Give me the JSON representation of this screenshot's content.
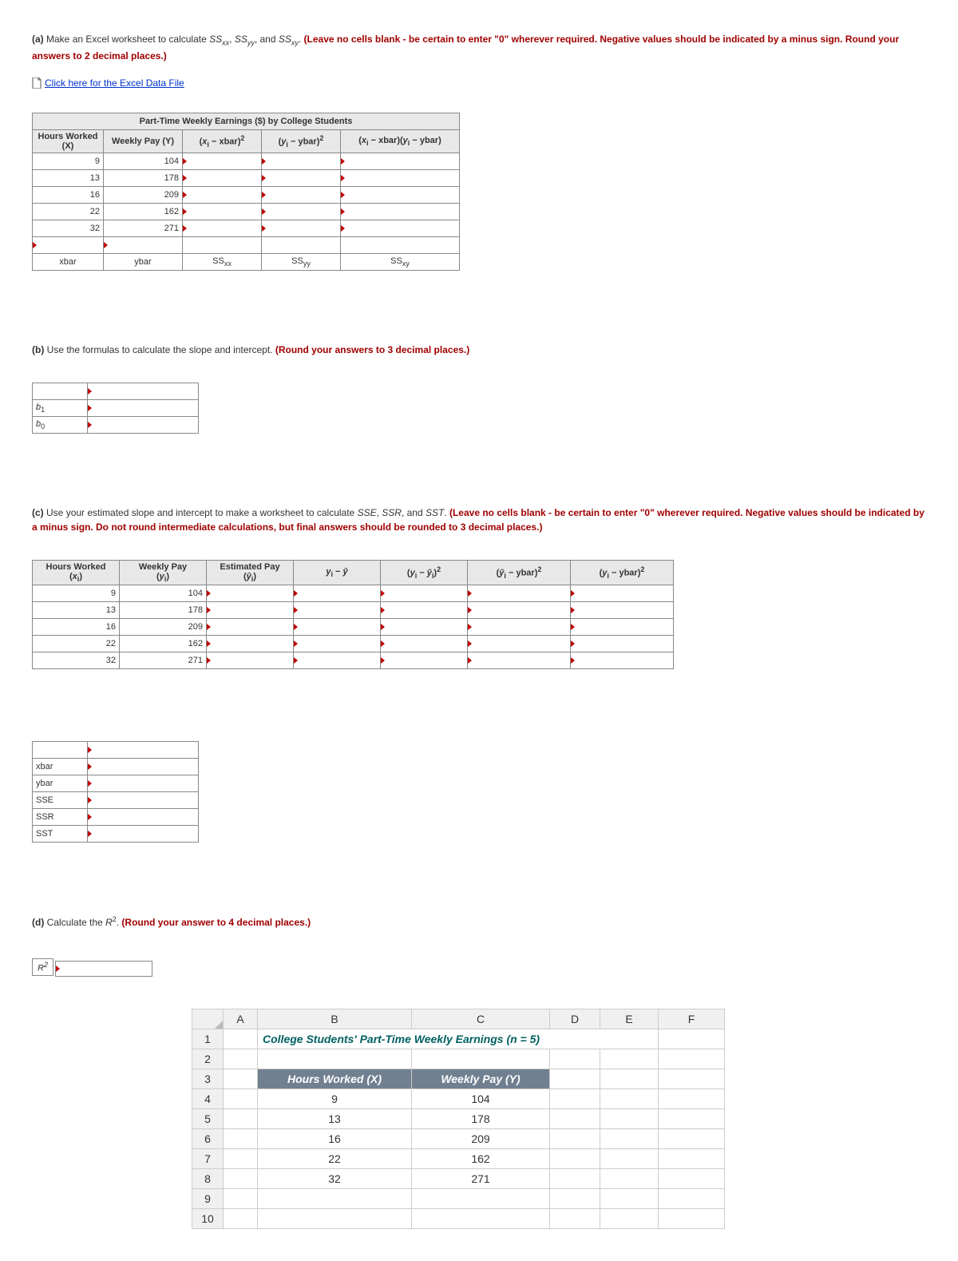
{
  "partA": {
    "label": "(a)",
    "text_before": "Make an Excel worksheet to calculate ",
    "ss_terms": [
      "SS",
      "xx",
      ", ",
      "SS",
      "yy",
      ", and ",
      "SS",
      "xy",
      ". "
    ],
    "red_text": "(Leave no cells blank - be certain to enter \"0\" wherever required. Negative values should be indicated by a minus sign. Round your answers to 2 decimal places.)",
    "link_text": "Click here for the Excel Data File",
    "table_title": "Part-Time Weekly Earnings ($) by College Students",
    "headers": {
      "h1": "Hours Worked (X)",
      "h2": "Weekly Pay (Y)",
      "h3_pre": "(x",
      "h3_sub": "i",
      "h3_post": " − xbar)",
      "h3_sup": "2",
      "h4_pre": "(y",
      "h4_sub": "i",
      "h4_post": " − ybar)",
      "h4_sup": "2",
      "h5_pre": "(x",
      "h5_sub1": "i",
      "h5_mid": " − xbar)(y",
      "h5_sub2": "i",
      "h5_post": " − ybar)"
    },
    "rows": [
      {
        "x": "9",
        "y": "104"
      },
      {
        "x": "13",
        "y": "178"
      },
      {
        "x": "16",
        "y": "209"
      },
      {
        "x": "22",
        "y": "162"
      },
      {
        "x": "32",
        "y": "271"
      }
    ],
    "footer": {
      "xbar": "xbar",
      "ybar": "ybar",
      "ssxx": "SS",
      "ssxx_sub": "xx",
      "ssyy": "SS",
      "ssyy_sub": "yy",
      "ssxy": "SS",
      "ssxy_sub": "xy"
    },
    "col_widths": {
      "c1": 80,
      "c2": 90,
      "c3": 90,
      "c4": 90,
      "c5": 130
    }
  },
  "partB": {
    "label": "(b)",
    "text": "Use the formulas to calculate the slope and intercept. ",
    "red": "(Round your answers to 3 decimal places.)",
    "rows": [
      {
        "label_pre": "b",
        "label_sub": "1"
      },
      {
        "label_pre": "b",
        "label_sub": "0"
      }
    ],
    "col_widths": {
      "c1": 60,
      "c2": 130
    }
  },
  "partC": {
    "label": "(c)",
    "text": "Use your estimated slope and intercept to make a worksheet to calculate ",
    "terms": "SSE, SSR, ",
    "and": "and ",
    "last": "SST. ",
    "red": "(Leave no cells blank - be certain to enter \"0\" wherever required. Negative values should be indicated by a minus sign. Do not round intermediate calculations, but final answers should be rounded to 3 decimal places.)",
    "headers": {
      "h1": "Hours Worked",
      "h1b": "(x",
      "h1b_sub": "i",
      "h1b_post": ")",
      "h2": "Weekly Pay",
      "h2b": "(y",
      "h2b_sub": "i",
      "h2b_post": ")",
      "h3": "Estimated Pay",
      "h3b": "(ŷ",
      "h3b_sub": "i",
      "h3b_post": ")",
      "h4": "y",
      "h4_sub": "i",
      "h4_mid": " − ŷ",
      "h5": "(y",
      "h5_sub": "i",
      "h5_mid": " − ŷ",
      "h5_sub2": "i",
      "h5_post": ")",
      "h5_sup": "2",
      "h6": "(ŷ",
      "h6_sub": "i",
      "h6_mid": " − ybar)",
      "h6_sup": "2",
      "h7": "(y",
      "h7_sub": "i",
      "h7_mid": " − ybar)",
      "h7_sup": "2"
    },
    "rows": [
      {
        "x": "9",
        "y": "104"
      },
      {
        "x": "13",
        "y": "178"
      },
      {
        "x": "16",
        "y": "209"
      },
      {
        "x": "22",
        "y": "162"
      },
      {
        "x": "32",
        "y": "271"
      }
    ],
    "col_widths": {
      "c1": 100,
      "c2": 100,
      "c3": 100,
      "c4": 100,
      "c5": 100,
      "c6": 120,
      "c7": 120
    },
    "summary": {
      "rows": [
        "xbar",
        "ybar",
        "SSE",
        "SSR",
        "SST"
      ],
      "col_widths": {
        "c1": 60,
        "c2": 130
      }
    }
  },
  "partD": {
    "label": "(d)",
    "text": "Calculate the ",
    "r": "R",
    "r_sup": "2",
    "after": ". ",
    "red": "(Round your answer to 4 decimal places.)",
    "box_label_pre": "R",
    "box_label_sup": "2"
  },
  "excel": {
    "cols": [
      "A",
      "B",
      "C",
      "D",
      "E",
      "F"
    ],
    "rows": [
      "1",
      "2",
      "3",
      "4",
      "5",
      "6",
      "7",
      "8",
      "9",
      "10"
    ],
    "title": "College Students' Part-Time Weekly Earnings (n = 5)",
    "hdrB": "Hours Worked (X)",
    "hdrC": "Weekly Pay (Y)",
    "data": [
      {
        "b": "9",
        "c": "104"
      },
      {
        "b": "13",
        "c": "178"
      },
      {
        "b": "16",
        "c": "209"
      },
      {
        "b": "22",
        "c": "162"
      },
      {
        "b": "32",
        "c": "271"
      }
    ],
    "col_widths": {
      "A": 30,
      "B": 180,
      "C": 160,
      "D": 50,
      "E": 60,
      "F": 70
    }
  }
}
